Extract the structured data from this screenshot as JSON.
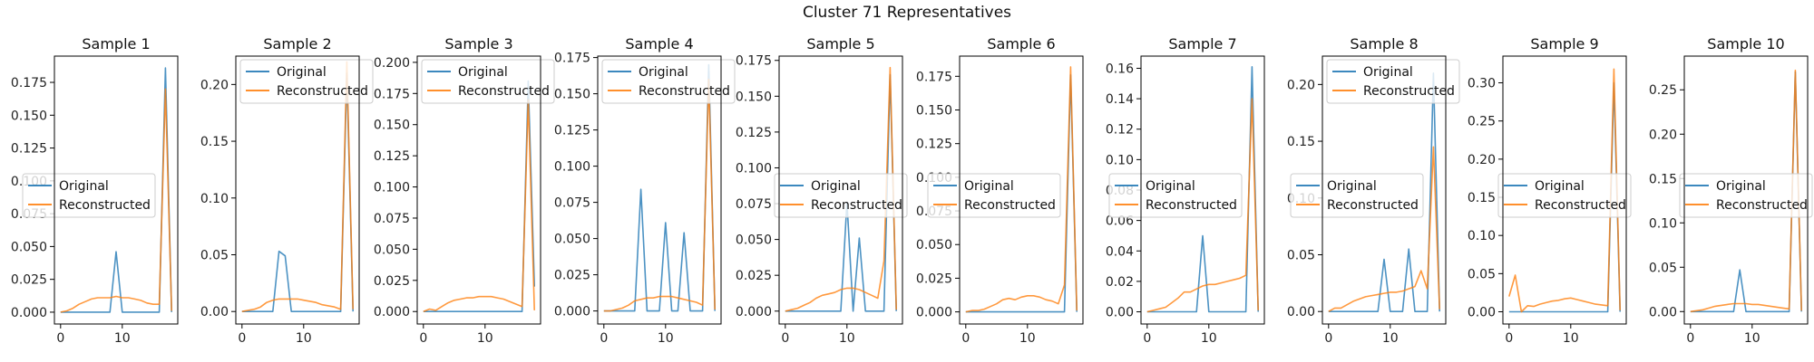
{
  "suptitle": "Cluster 71 Representatives",
  "colors": {
    "original": "#1f77b4",
    "reconstructed": "#ff7f0e"
  },
  "legend_labels": [
    "Original",
    "Reconstructed"
  ],
  "chart_data": [
    {
      "type": "line",
      "title": "Sample 1",
      "xlim": [
        -1,
        19
      ],
      "ylim": [
        -0.009,
        0.195
      ],
      "yticks": [
        0.0,
        0.025,
        0.05,
        0.075,
        0.1,
        0.125,
        0.15,
        0.175
      ],
      "ytick_labels": [
        "0.000",
        "0.025",
        "0.050",
        "0.075",
        "0.100",
        "0.125",
        "0.150",
        "0.175"
      ],
      "xticks": [
        0,
        10
      ],
      "xtick_labels": [
        "0",
        "10"
      ],
      "legends": [
        "middle-left"
      ],
      "x": [
        0,
        1,
        2,
        3,
        4,
        5,
        6,
        7,
        8,
        9,
        10,
        11,
        12,
        13,
        14,
        15,
        16,
        17,
        18
      ],
      "series": [
        {
          "name": "Original",
          "values": [
            0,
            0,
            0,
            0,
            0,
            0,
            0,
            0,
            0,
            0.046,
            0,
            0,
            0,
            0,
            0,
            0,
            0,
            0.186,
            0
          ]
        },
        {
          "name": "Reconstructed",
          "values": [
            0,
            0.001,
            0.003,
            0.006,
            0.008,
            0.01,
            0.011,
            0.011,
            0.011,
            0.012,
            0.011,
            0.011,
            0.01,
            0.009,
            0.007,
            0.006,
            0.006,
            0.17,
            0.001
          ]
        }
      ]
    },
    {
      "type": "line",
      "title": "Sample 2",
      "xlim": [
        -1,
        19
      ],
      "ylim": [
        -0.011,
        0.225
      ],
      "yticks": [
        0.0,
        0.05,
        0.1,
        0.15,
        0.2
      ],
      "ytick_labels": [
        "0.00",
        "0.05",
        "0.10",
        "0.15",
        "0.20"
      ],
      "xticks": [
        0,
        10
      ],
      "xtick_labels": [
        "0",
        "10"
      ],
      "legends": [
        "top-left"
      ],
      "x": [
        0,
        1,
        2,
        3,
        4,
        5,
        6,
        7,
        8,
        9,
        10,
        11,
        12,
        13,
        14,
        15,
        16,
        17,
        18
      ],
      "series": [
        {
          "name": "Original",
          "values": [
            0,
            0,
            0,
            0,
            0,
            0,
            0.053,
            0.049,
            0,
            0,
            0,
            0,
            0,
            0,
            0,
            0,
            0,
            0.21,
            0
          ]
        },
        {
          "name": "Reconstructed",
          "values": [
            0,
            0.001,
            0.002,
            0.004,
            0.008,
            0.01,
            0.011,
            0.011,
            0.011,
            0.011,
            0.01,
            0.009,
            0.008,
            0.006,
            0.005,
            0.004,
            0.002,
            0.22,
            0.002
          ]
        }
      ]
    },
    {
      "type": "line",
      "title": "Sample 3",
      "xlim": [
        -1,
        19
      ],
      "ylim": [
        -0.01,
        0.205
      ],
      "yticks": [
        0.0,
        0.025,
        0.05,
        0.075,
        0.1,
        0.125,
        0.15,
        0.175,
        0.2
      ],
      "ytick_labels": [
        "0.000",
        "0.025",
        "0.050",
        "0.075",
        "0.100",
        "0.125",
        "0.150",
        "0.175",
        "0.200"
      ],
      "xticks": [
        0,
        10
      ],
      "xtick_labels": [
        "0",
        "10"
      ],
      "legends": [
        "top-left"
      ],
      "x": [
        0,
        1,
        2,
        3,
        4,
        5,
        6,
        7,
        8,
        9,
        10,
        11,
        12,
        13,
        14,
        15,
        16,
        17,
        18
      ],
      "series": [
        {
          "name": "Original",
          "values": [
            0,
            0,
            0,
            0,
            0,
            0,
            0,
            0,
            0,
            0,
            0,
            0,
            0,
            0,
            0,
            0,
            0,
            0.185,
            0.02
          ]
        },
        {
          "name": "Reconstructed",
          "values": [
            0,
            0.002,
            0.001,
            0.004,
            0.007,
            0.009,
            0.01,
            0.011,
            0.011,
            0.012,
            0.012,
            0.012,
            0.011,
            0.01,
            0.008,
            0.006,
            0.004,
            0.17,
            0.001
          ]
        }
      ]
    },
    {
      "type": "line",
      "title": "Sample 4",
      "xlim": [
        -1,
        19
      ],
      "ylim": [
        -0.009,
        0.176
      ],
      "yticks": [
        0.0,
        0.025,
        0.05,
        0.075,
        0.1,
        0.125,
        0.15,
        0.175
      ],
      "ytick_labels": [
        "0.000",
        "0.025",
        "0.050",
        "0.075",
        "0.100",
        "0.125",
        "0.150",
        "0.175"
      ],
      "xticks": [
        0,
        10
      ],
      "xtick_labels": [
        "0",
        "10"
      ],
      "legends": [
        "top-left"
      ],
      "x": [
        0,
        1,
        2,
        3,
        4,
        5,
        6,
        7,
        8,
        9,
        10,
        11,
        12,
        13,
        14,
        15,
        16,
        17,
        18
      ],
      "series": [
        {
          "name": "Original",
          "values": [
            0,
            0,
            0,
            0,
            0,
            0,
            0.084,
            0,
            0,
            0,
            0.061,
            0,
            0,
            0.054,
            0,
            0,
            0,
            0.17,
            0
          ]
        },
        {
          "name": "Reconstructed",
          "values": [
            0,
            0,
            0.001,
            0.002,
            0.004,
            0.007,
            0.008,
            0.009,
            0.009,
            0.01,
            0.01,
            0.01,
            0.009,
            0.008,
            0.007,
            0.006,
            0.004,
            0.16,
            0.001
          ]
        }
      ]
    },
    {
      "type": "line",
      "title": "Sample 5",
      "xlim": [
        -1,
        19
      ],
      "ylim": [
        -0.009,
        0.178
      ],
      "yticks": [
        0.0,
        0.025,
        0.05,
        0.075,
        0.1,
        0.125,
        0.15,
        0.175
      ],
      "ytick_labels": [
        "0.000",
        "0.025",
        "0.050",
        "0.075",
        "0.100",
        "0.125",
        "0.150",
        "0.175"
      ],
      "xticks": [
        0,
        10
      ],
      "xtick_labels": [
        "0",
        "10"
      ],
      "legends": [
        "middle"
      ],
      "x": [
        0,
        1,
        2,
        3,
        4,
        5,
        6,
        7,
        8,
        9,
        10,
        11,
        12,
        13,
        14,
        15,
        16,
        17,
        18
      ],
      "series": [
        {
          "name": "Original",
          "values": [
            0,
            0,
            0,
            0,
            0,
            0,
            0,
            0,
            0,
            0,
            0.076,
            0,
            0.051,
            0,
            0,
            0,
            0,
            0.165,
            0
          ]
        },
        {
          "name": "Reconstructed",
          "values": [
            0,
            0.001,
            0.002,
            0.004,
            0.006,
            0.009,
            0.011,
            0.012,
            0.013,
            0.015,
            0.016,
            0.016,
            0.015,
            0.013,
            0.011,
            0.009,
            0.035,
            0.17,
            0.001
          ]
        }
      ]
    },
    {
      "type": "line",
      "title": "Sample 6",
      "xlim": [
        -1,
        19
      ],
      "ylim": [
        -0.009,
        0.19
      ],
      "yticks": [
        0.0,
        0.025,
        0.05,
        0.075,
        0.1,
        0.125,
        0.15,
        0.175
      ],
      "ytick_labels": [
        "0.000",
        "0.025",
        "0.050",
        "0.075",
        "0.100",
        "0.125",
        "0.150",
        "0.175"
      ],
      "xticks": [
        0,
        10
      ],
      "xtick_labels": [
        "0",
        "10"
      ],
      "legends": [
        "middle-left"
      ],
      "x": [
        0,
        1,
        2,
        3,
        4,
        5,
        6,
        7,
        8,
        9,
        10,
        11,
        12,
        13,
        14,
        15,
        16,
        17,
        18
      ],
      "series": [
        {
          "name": "Original",
          "values": [
            0,
            0,
            0,
            0,
            0,
            0,
            0,
            0,
            0,
            0,
            0,
            0,
            0,
            0,
            0,
            0,
            0,
            0.176,
            0
          ]
        },
        {
          "name": "Reconstructed",
          "values": [
            0,
            0.001,
            0.001,
            0.002,
            0.004,
            0.006,
            0.009,
            0.01,
            0.009,
            0.011,
            0.012,
            0.012,
            0.011,
            0.009,
            0.008,
            0.006,
            0.02,
            0.182,
            0.001
          ]
        }
      ]
    },
    {
      "type": "line",
      "title": "Sample 7",
      "xlim": [
        -1,
        19
      ],
      "ylim": [
        -0.008,
        0.168
      ],
      "yticks": [
        0.0,
        0.02,
        0.04,
        0.06,
        0.08,
        0.1,
        0.12,
        0.14,
        0.16
      ],
      "ytick_labels": [
        "0.00",
        "0.02",
        "0.04",
        "0.06",
        "0.08",
        "0.10",
        "0.12",
        "0.14",
        "0.16"
      ],
      "xticks": [
        0,
        10
      ],
      "xtick_labels": [
        "0",
        "10"
      ],
      "legends": [
        "middle-left"
      ],
      "x": [
        0,
        1,
        2,
        3,
        4,
        5,
        6,
        7,
        8,
        9,
        10,
        11,
        12,
        13,
        14,
        15,
        16,
        17,
        18
      ],
      "series": [
        {
          "name": "Original",
          "values": [
            0,
            0,
            0,
            0,
            0,
            0,
            0,
            0,
            0,
            0.05,
            0,
            0,
            0,
            0,
            0,
            0,
            0,
            0.161,
            0
          ]
        },
        {
          "name": "Reconstructed",
          "values": [
            0,
            0.001,
            0.002,
            0.003,
            0.006,
            0.009,
            0.013,
            0.013,
            0.015,
            0.017,
            0.018,
            0.018,
            0.019,
            0.02,
            0.021,
            0.022,
            0.024,
            0.14,
            0.001
          ]
        }
      ]
    },
    {
      "type": "line",
      "title": "Sample 8",
      "xlim": [
        -1,
        19
      ],
      "ylim": [
        -0.011,
        0.225
      ],
      "yticks": [
        0.0,
        0.05,
        0.1,
        0.15,
        0.2
      ],
      "ytick_labels": [
        "0.00",
        "0.05",
        "0.10",
        "0.15",
        "0.20"
      ],
      "xticks": [
        0,
        10
      ],
      "xtick_labels": [
        "0",
        "10"
      ],
      "legends": [
        "top-left",
        "middle-left"
      ],
      "x": [
        0,
        1,
        2,
        3,
        4,
        5,
        6,
        7,
        8,
        9,
        10,
        11,
        12,
        13,
        14,
        15,
        16,
        17,
        18
      ],
      "series": [
        {
          "name": "Original",
          "values": [
            0,
            0,
            0,
            0,
            0,
            0,
            0,
            0,
            0,
            0.046,
            0,
            0,
            0,
            0.055,
            0,
            0,
            0,
            0.21,
            0
          ]
        },
        {
          "name": "Reconstructed",
          "values": [
            0,
            0.003,
            0.003,
            0.006,
            0.009,
            0.011,
            0.013,
            0.014,
            0.015,
            0.016,
            0.017,
            0.017,
            0.018,
            0.02,
            0.022,
            0.036,
            0.02,
            0.145,
            0.002
          ]
        }
      ]
    },
    {
      "type": "line",
      "title": "Sample 9",
      "xlim": [
        -1,
        19
      ],
      "ylim": [
        -0.016,
        0.335
      ],
      "yticks": [
        0.0,
        0.05,
        0.1,
        0.15,
        0.2,
        0.25,
        0.3
      ],
      "ytick_labels": [
        "0.00",
        "0.05",
        "0.10",
        "0.15",
        "0.20",
        "0.25",
        "0.30"
      ],
      "xticks": [
        0,
        10
      ],
      "xtick_labels": [
        "0",
        "10"
      ],
      "legends": [
        "middle"
      ],
      "x": [
        0,
        1,
        2,
        3,
        4,
        5,
        6,
        7,
        8,
        9,
        10,
        11,
        12,
        13,
        14,
        15,
        16,
        17,
        18
      ],
      "series": [
        {
          "name": "Original",
          "values": [
            0,
            0,
            0,
            0,
            0,
            0,
            0,
            0,
            0,
            0,
            0,
            0,
            0,
            0,
            0,
            0,
            0,
            0.3,
            0
          ]
        },
        {
          "name": "Reconstructed",
          "values": [
            0.02,
            0.048,
            0,
            0.008,
            0.007,
            0.01,
            0.012,
            0.014,
            0.015,
            0.017,
            0.018,
            0.016,
            0.014,
            0.012,
            0.01,
            0.009,
            0.008,
            0.318,
            0.002
          ]
        }
      ]
    },
    {
      "type": "line",
      "title": "Sample 10",
      "xlim": [
        -1,
        19
      ],
      "ylim": [
        -0.014,
        0.288
      ],
      "yticks": [
        0.0,
        0.05,
        0.1,
        0.15,
        0.2,
        0.25
      ],
      "ytick_labels": [
        "0.00",
        "0.05",
        "0.10",
        "0.15",
        "0.20",
        "0.25"
      ],
      "xticks": [
        0,
        10
      ],
      "xtick_labels": [
        "0",
        "10"
      ],
      "legends": [
        "middle"
      ],
      "x": [
        0,
        1,
        2,
        3,
        4,
        5,
        6,
        7,
        8,
        9,
        10,
        11,
        12,
        13,
        14,
        15,
        16,
        17,
        18
      ],
      "series": [
        {
          "name": "Original",
          "values": [
            0,
            0,
            0,
            0,
            0,
            0,
            0,
            0,
            0.047,
            0,
            0,
            0,
            0,
            0,
            0,
            0,
            0,
            0.27,
            0
          ]
        },
        {
          "name": "Reconstructed",
          "values": [
            0,
            0.001,
            0.002,
            0.004,
            0.006,
            0.007,
            0.008,
            0.009,
            0.009,
            0.009,
            0.008,
            0.008,
            0.007,
            0.006,
            0.005,
            0.004,
            0.003,
            0.272,
            0.001
          ]
        }
      ]
    }
  ]
}
